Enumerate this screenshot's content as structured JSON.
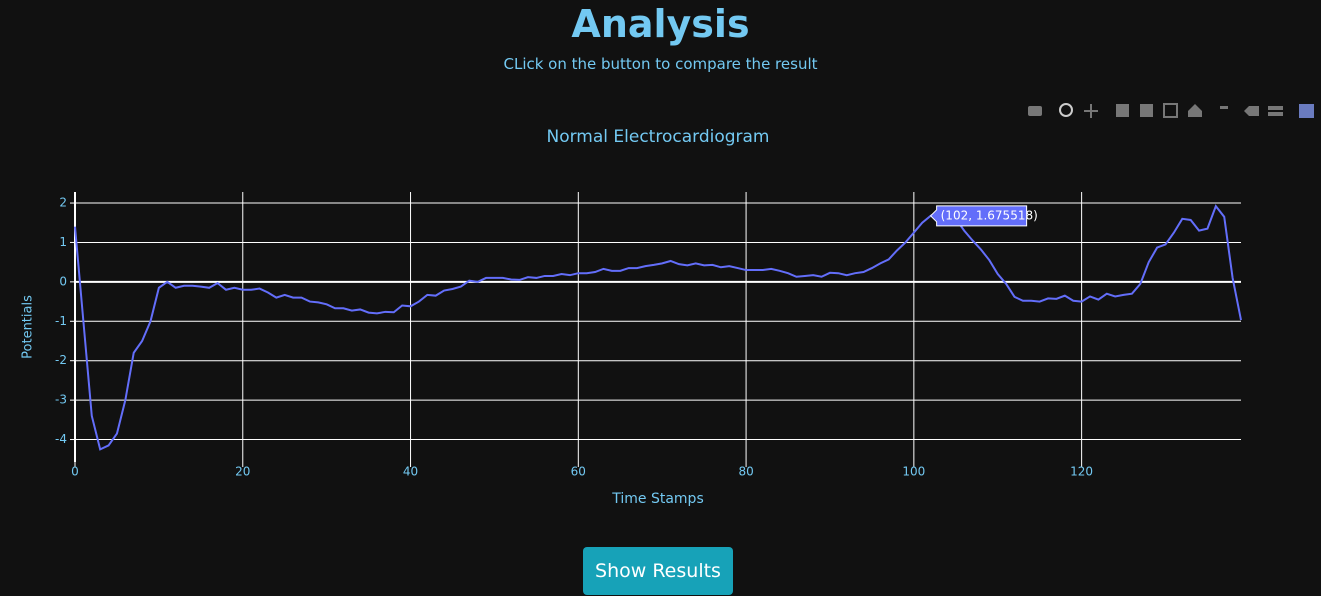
{
  "header": {
    "title": "Analysis",
    "subtitle": "CLick on the button to compare the result"
  },
  "button": {
    "label": "Show Results"
  },
  "chart_data": {
    "type": "line",
    "title": "Normal Electrocardiogram",
    "x_label": "Time Stamps",
    "y_label": "Potentials",
    "annotation": "(102, 1.675518)",
    "x": [
      0,
      1,
      2,
      3,
      4,
      5,
      6,
      7,
      8,
      9,
      10,
      11,
      12,
      13,
      14,
      15,
      16,
      17,
      18,
      19,
      20,
      21,
      22,
      23,
      24,
      25,
      26,
      27,
      28,
      29,
      30,
      31,
      32,
      33,
      34,
      35,
      36,
      37,
      38,
      39,
      40,
      41,
      42,
      43,
      44,
      45,
      46,
      47,
      48,
      49,
      50,
      51,
      52,
      53,
      54,
      55,
      56,
      57,
      58,
      59,
      60,
      61,
      62,
      63,
      64,
      65,
      66,
      67,
      68,
      69,
      70,
      71,
      72,
      73,
      74,
      75,
      76,
      77,
      78,
      79,
      80,
      81,
      82,
      83,
      84,
      85,
      86,
      87,
      88,
      89,
      90,
      91,
      92,
      93,
      94,
      95,
      96,
      97,
      98,
      99,
      100,
      101,
      102,
      103,
      104,
      105,
      106,
      107,
      108,
      109,
      110,
      111,
      112,
      113,
      114,
      115,
      116,
      117,
      118,
      119,
      120,
      121,
      122,
      123,
      124,
      125,
      126,
      127,
      128,
      129,
      130,
      131,
      132,
      133,
      134,
      135,
      136,
      137,
      138,
      139
    ],
    "series": [
      {
        "name": "Potentials",
        "color": "#636efa",
        "values": [
          1.4,
          -1,
          -3.4,
          -4.25,
          -4.15,
          -3.85,
          -3,
          -1.8,
          -1.5,
          -1,
          -0.15,
          0,
          -0.15,
          -0.1,
          -0.1,
          -0.12,
          -0.15,
          -0.03,
          -0.2,
          -0.15,
          -0.2,
          -0.2,
          -0.17,
          -0.27,
          -0.4,
          -0.33,
          -0.4,
          -0.4,
          -0.5,
          -0.52,
          -0.57,
          -0.67,
          -0.67,
          -0.73,
          -0.7,
          -0.78,
          -0.8,
          -0.76,
          -0.77,
          -0.6,
          -0.62,
          -0.5,
          -0.33,
          -0.35,
          -0.22,
          -0.18,
          -0.12,
          0.03,
          0,
          0.1,
          0.1,
          0.1,
          0.06,
          0.05,
          0.12,
          0.1,
          0.15,
          0.15,
          0.2,
          0.17,
          0.22,
          0.22,
          0.25,
          0.33,
          0.28,
          0.28,
          0.35,
          0.35,
          0.4,
          0.43,
          0.47,
          0.53,
          0.45,
          0.42,
          0.47,
          0.42,
          0.43,
          0.37,
          0.4,
          0.35,
          0.3,
          0.3,
          0.3,
          0.33,
          0.28,
          0.22,
          0.13,
          0.15,
          0.17,
          0.13,
          0.23,
          0.22,
          0.17,
          0.22,
          0.25,
          0.35,
          0.47,
          0.57,
          0.8,
          1,
          1.25,
          1.5,
          1.675518,
          1.8,
          1.75,
          1.6,
          1.3,
          1.05,
          0.82,
          0.55,
          0.2,
          -0.05,
          -0.38,
          -0.48,
          -0.48,
          -0.5,
          -0.42,
          -0.43,
          -0.35,
          -0.48,
          -0.5,
          -0.37,
          -0.45,
          -0.3,
          -0.37,
          -0.33,
          -0.3,
          -0.05,
          0.5,
          0.87,
          0.95,
          1.25,
          1.6,
          1.57,
          1.3,
          1.35,
          1.92,
          1.65,
          0.1,
          -0.97
        ]
      }
    ],
    "xlim": [
      0,
      139
    ],
    "ylim": [
      -4.57,
      2.28
    ],
    "xticks": [
      0,
      20,
      40,
      60,
      80,
      100,
      120
    ],
    "yticks": [
      -4,
      -3,
      -2,
      -1,
      0,
      1,
      2
    ],
    "grid": true
  }
}
